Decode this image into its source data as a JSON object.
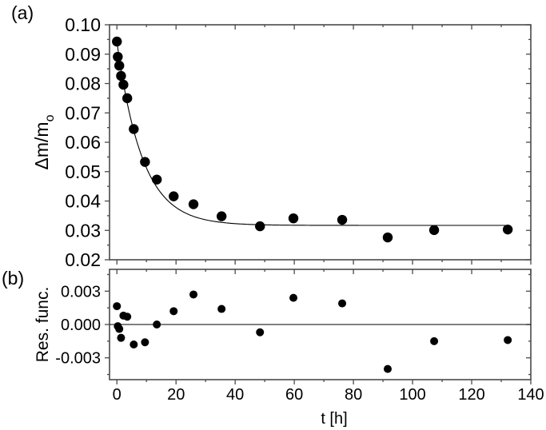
{
  "chart_data": [
    {
      "panel_label": "(a)",
      "type": "scatter",
      "title": "",
      "xlabel": "t [h]",
      "ylabel": "Δm/m",
      "ylabel_subscript": "o",
      "xlim": [
        -2.5,
        140
      ],
      "ylim": [
        0.02,
        0.1
      ],
      "xticks": [
        0,
        20,
        40,
        60,
        80,
        100,
        120,
        140
      ],
      "yticks": [
        "0.02",
        "0.03",
        "0.04",
        "0.05",
        "0.06",
        "0.07",
        "0.08",
        "0.09",
        "0.10"
      ],
      "grid": false,
      "legend": null,
      "series": [
        {
          "name": "measured",
          "style": "filled-circle",
          "color": "#000000",
          "x": [
            0,
            0.3,
            0.8,
            1.4,
            2.2,
            3.5,
            5.7,
            9.5,
            13.5,
            19.2,
            25.9,
            35.4,
            48.4,
            59.7,
            76.2,
            91.6,
            107.3,
            132.2
          ],
          "y": [
            0.0943,
            0.0891,
            0.0861,
            0.0826,
            0.0796,
            0.075,
            0.0645,
            0.0533,
            0.0473,
            0.0416,
            0.0389,
            0.0348,
            0.0314,
            0.0341,
            0.0336,
            0.0276,
            0.0301,
            0.0303
          ]
        },
        {
          "name": "fit",
          "style": "line",
          "color": "#000000",
          "model": "y = y0 + A*exp(-t/tau)",
          "params": {
            "y0": 0.0317,
            "A": 0.0625,
            "tau": 8.6
          }
        }
      ]
    },
    {
      "panel_label": "(b)",
      "type": "scatter",
      "title": "",
      "xlabel": "t [h]",
      "ylabel": "Res. func.",
      "xlim": [
        -2.5,
        140
      ],
      "ylim": [
        -0.005,
        0.0051
      ],
      "xticks": [
        0,
        20,
        40,
        60,
        80,
        100,
        120,
        140
      ],
      "yticks": [
        "0.003",
        "0.000",
        "-0.003"
      ],
      "ytick_values": [
        0.003,
        0.0,
        -0.003
      ],
      "grid": false,
      "zero_line": true,
      "series": [
        {
          "name": "residuals",
          "style": "filled-circle",
          "color": "#000000",
          "x": [
            0,
            0.3,
            0.8,
            1.4,
            2.2,
            3.5,
            5.7,
            9.5,
            13.5,
            19.2,
            25.9,
            35.4,
            48.4,
            59.7,
            76.2,
            91.6,
            107.3,
            132.2
          ],
          "y": [
            0.00165,
            -0.00015,
            -0.0004,
            -0.0012,
            0.0008,
            0.0007,
            -0.0018,
            -0.0016,
            0.0,
            0.0012,
            0.0027,
            0.0014,
            -0.0007,
            0.0024,
            0.0019,
            -0.004,
            -0.0015,
            -0.0014
          ]
        }
      ]
    }
  ],
  "labels": {
    "panel_a": "(a)",
    "panel_b": "(b)",
    "ylabel_a_main": "Δm/m",
    "ylabel_a_sub": "o",
    "ylabel_b": "Res. func.",
    "xlabel": "t [h]"
  },
  "colors": {
    "axis": "#4a4a4a",
    "marker": "#000000",
    "line": "#000000",
    "background": "#ffffff"
  }
}
